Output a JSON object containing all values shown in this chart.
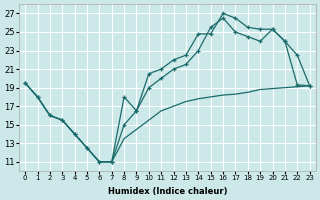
{
  "xlabel": "Humidex (Indice chaleur)",
  "bg_color": "#cce8e8",
  "grid_color": "#ffffff",
  "line_color": "#1a6b6b",
  "xlim": [
    -0.5,
    23.5
  ],
  "ylim": [
    10,
    28
  ],
  "xticks": [
    0,
    1,
    2,
    3,
    4,
    5,
    6,
    7,
    8,
    9,
    10,
    11,
    12,
    13,
    14,
    15,
    16,
    17,
    18,
    19,
    20,
    21,
    22,
    23
  ],
  "yticks": [
    11,
    13,
    15,
    17,
    19,
    21,
    23,
    25,
    27
  ],
  "curve1_x": [
    0,
    1,
    2,
    3,
    4,
    5,
    6,
    7,
    8,
    9,
    10,
    11,
    12,
    13,
    14,
    15,
    16,
    17,
    18,
    19,
    20,
    21,
    22,
    23
  ],
  "curve1_y": [
    19.5,
    18.0,
    16.0,
    15.5,
    14.0,
    12.5,
    11.0,
    11.0,
    18.0,
    16.5,
    20.5,
    21.0,
    22.0,
    22.5,
    24.8,
    24.8,
    27.0,
    26.5,
    25.5,
    25.3,
    25.3,
    24.0,
    19.3,
    19.2
  ],
  "curve2_x": [
    0,
    1,
    2,
    3,
    4,
    5,
    6,
    7,
    8,
    9,
    10,
    11,
    12,
    13,
    14,
    15,
    16,
    17,
    18,
    19,
    20,
    21,
    22,
    23
  ],
  "curve2_y": [
    19.5,
    18.0,
    16.0,
    15.5,
    14.0,
    12.5,
    11.0,
    11.0,
    15.0,
    16.5,
    19.0,
    20.0,
    21.0,
    21.5,
    23.0,
    25.5,
    26.5,
    25.0,
    24.5,
    24.0,
    25.3,
    24.0,
    22.5,
    19.2
  ],
  "curve3_x": [
    0,
    1,
    2,
    3,
    4,
    5,
    6,
    7,
    8,
    9,
    10,
    11,
    12,
    13,
    14,
    15,
    16,
    17,
    18,
    19,
    20,
    21,
    22,
    23
  ],
  "curve3_y": [
    19.5,
    18.0,
    16.0,
    15.5,
    14.0,
    12.5,
    11.0,
    11.0,
    13.5,
    14.5,
    15.5,
    16.5,
    17.0,
    17.5,
    17.8,
    18.0,
    18.2,
    18.3,
    18.5,
    18.8,
    18.9,
    19.0,
    19.1,
    19.2
  ]
}
